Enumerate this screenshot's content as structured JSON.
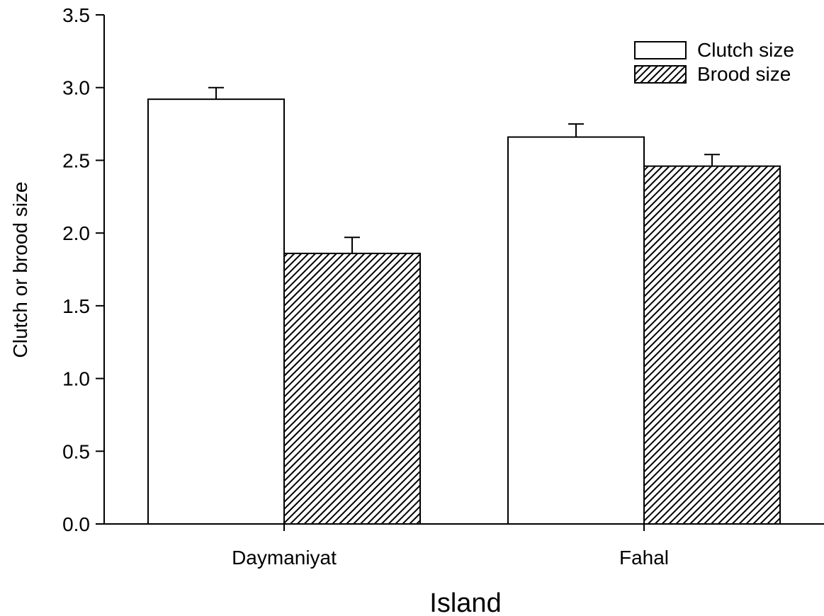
{
  "chart_data": {
    "type": "bar",
    "title": "",
    "xlabel": "Island",
    "ylabel": "Clutch or brood size",
    "categories": [
      "Daymaniyat",
      "Fahal"
    ],
    "series": [
      {
        "name": "Clutch size",
        "values": [
          2.92,
          2.66
        ],
        "errors": [
          0.08,
          0.09
        ],
        "fill": "plain",
        "color": "#ffffff"
      },
      {
        "name": "Brood size",
        "values": [
          1.86,
          2.46
        ],
        "errors": [
          0.11,
          0.08
        ],
        "fill": "hatched",
        "color": "#000000"
      }
    ],
    "ylim": [
      0,
      3.5
    ],
    "yticks": [
      "0.0",
      "0.5",
      "1.0",
      "1.5",
      "2.0",
      "2.5",
      "3.0",
      "3.5"
    ],
    "grid": false,
    "legend_position": "top-right"
  }
}
